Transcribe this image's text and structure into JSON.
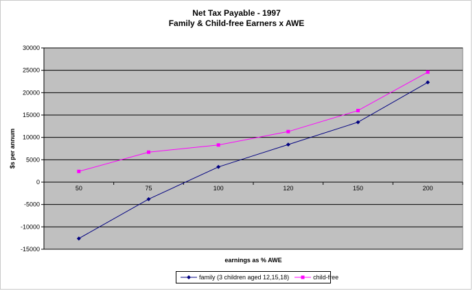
{
  "title_line1": "Net Tax Payable - 1997",
  "title_line2": "Family & Child-free Earners x AWE",
  "chart_data": {
    "type": "line",
    "title": "Net Tax Payable - 1997 / Family & Child-free Earners x AWE",
    "xlabel": "earnings as % AWE",
    "ylabel": "$s per annum",
    "categories": [
      "50",
      "75",
      "100",
      "120",
      "150",
      "200"
    ],
    "ylim": [
      -15000,
      30000
    ],
    "yticks": [
      -15000,
      -10000,
      -5000,
      0,
      5000,
      10000,
      15000,
      20000,
      25000,
      30000
    ],
    "grid": true,
    "legend_position": "bottom",
    "series": [
      {
        "name": "family (3 children aged 12,15,18)",
        "color": "#000080",
        "marker": "diamond",
        "values": [
          -12600,
          -3800,
          3400,
          8400,
          13400,
          22300
        ]
      },
      {
        "name": "child-free",
        "color": "#ff00ff",
        "marker": "square",
        "values": [
          2400,
          6700,
          8300,
          11300,
          16000,
          24600
        ]
      }
    ]
  },
  "colors": {
    "plot_background": "#c0c0c0",
    "gridline": "#000000"
  }
}
